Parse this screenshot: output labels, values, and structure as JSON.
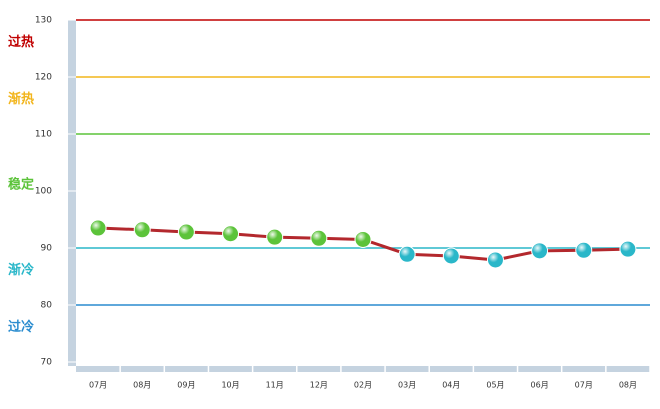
{
  "chart_data": {
    "type": "line",
    "categories": [
      "07月",
      "08月",
      "09月",
      "10月",
      "11月",
      "12月",
      "02月",
      "03月",
      "04月",
      "05月",
      "06月",
      "07月",
      "08月"
    ],
    "series": [
      {
        "color": "#b3282d",
        "values": [
          93.5,
          93.2,
          92.8,
          92.5,
          91.9,
          91.7,
          91.5,
          88.9,
          88.6,
          87.9,
          89.5,
          89.6,
          89.8
        ]
      }
    ],
    "ylim": [
      70,
      130
    ],
    "yticks": [
      70,
      80,
      90,
      100,
      110,
      120,
      130
    ],
    "bands": [
      {
        "label": "过热",
        "color": "#c00000",
        "upper": 130
      },
      {
        "label": "渐热",
        "color": "#f2b51c",
        "upper": 120
      },
      {
        "label": "稳定",
        "color": "#5cc33a",
        "upper": 110
      },
      {
        "label": "渐冷",
        "color": "#2ab7c9",
        "upper": 90
      },
      {
        "label": "过冷",
        "color": "#2a8ccf",
        "upper": 80
      }
    ]
  }
}
